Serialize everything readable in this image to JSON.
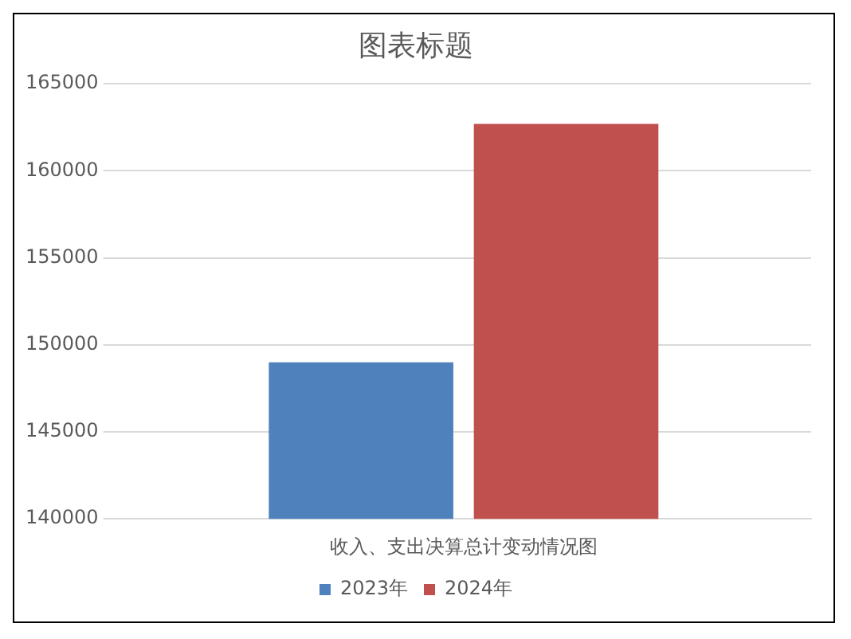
{
  "chart_data": {
    "type": "bar",
    "title": "图表标题",
    "categories": [
      "收入、支出决算总计变动情况图"
    ],
    "series": [
      {
        "name": "2023年",
        "color": "#4f81bd",
        "values": [
          149000
        ]
      },
      {
        "name": "2024年",
        "color": "#c0504d",
        "values": [
          162700
        ]
      }
    ],
    "ylim": [
      140000,
      165000
    ],
    "yticks": [
      140000,
      145000,
      150000,
      155000,
      160000,
      165000
    ],
    "grid": "y",
    "legend": "bottom"
  }
}
